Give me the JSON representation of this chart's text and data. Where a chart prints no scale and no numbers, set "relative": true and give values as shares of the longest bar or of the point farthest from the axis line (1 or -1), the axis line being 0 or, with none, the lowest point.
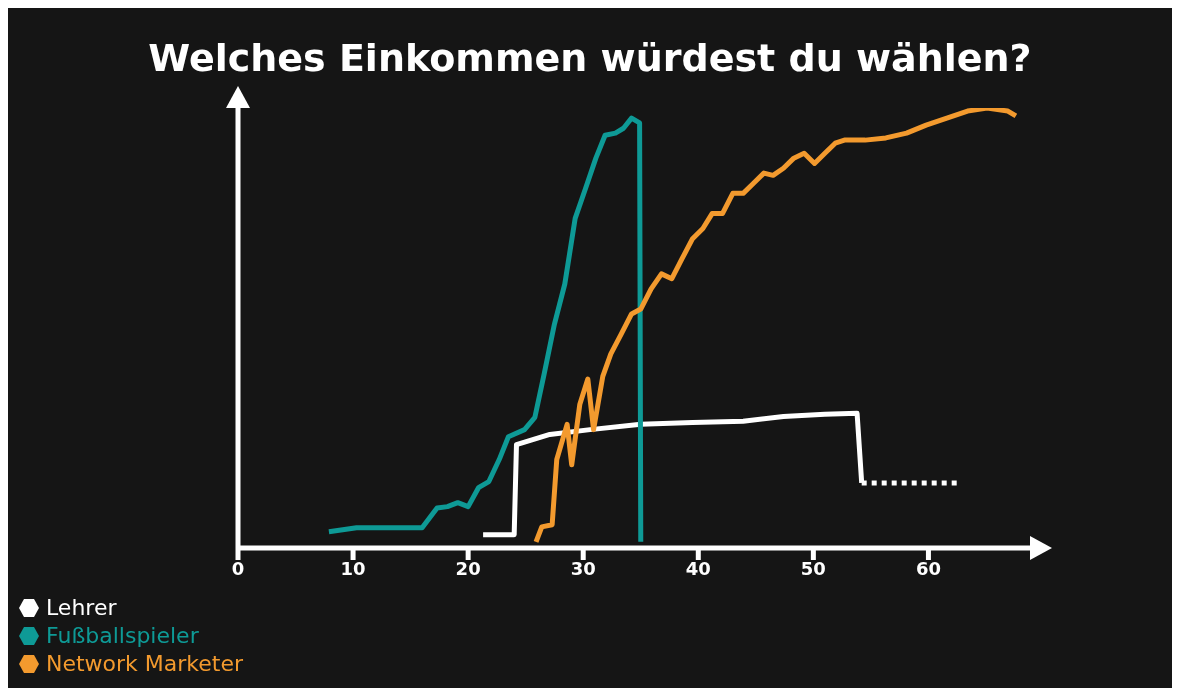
{
  "chart_data": {
    "type": "line",
    "title": "Welches Einkommen würdest du wählen?",
    "relative": true,
    "legend": "bottom left",
    "xlim": [
      0,
      69
    ],
    "xticks": [
      0,
      10,
      20,
      30,
      40,
      50,
      60
    ],
    "series": [
      {
        "name": "Lehrer",
        "color": "#ffffff",
        "x": [
          21.3,
          24.0,
          24.2,
          27.1,
          30.6,
          35.0,
          39.5,
          43.9,
          47.4,
          51.0,
          53.8,
          54.2
        ],
        "values": [
          0.03,
          0.03,
          0.235,
          0.258,
          0.269,
          0.281,
          0.285,
          0.288,
          0.299,
          0.304,
          0.306,
          0.148
        ]
      },
      {
        "color": "#ffffff",
        "line_style": "dotted",
        "x": [
          54.2,
          62.5
        ],
        "values": [
          0.148,
          0.148
        ]
      },
      {
        "name": "Fußballspieler",
        "color": "#0e9a96",
        "x": [
          7.9,
          10.3,
          16.0,
          17.3,
          18.2,
          19.1,
          20.0,
          20.9,
          21.8,
          22.7,
          23.5,
          24.9,
          25.8,
          26.6,
          27.5,
          28.4,
          29.3,
          30.2,
          31.1,
          31.9,
          32.8,
          33.5,
          34.2,
          34.9,
          35.0
        ],
        "values": [
          0.037,
          0.046,
          0.046,
          0.091,
          0.094,
          0.103,
          0.094,
          0.137,
          0.151,
          0.201,
          0.253,
          0.269,
          0.297,
          0.395,
          0.509,
          0.6,
          0.749,
          0.817,
          0.886,
          0.938,
          0.943,
          0.954,
          0.977,
          0.966,
          0.014
        ]
      },
      {
        "name": "Network Marketer",
        "color": "#f39a2e",
        "x": [
          25.9,
          26.4,
          27.3,
          27.7,
          28.6,
          29.0,
          29.7,
          30.4,
          30.9,
          31.7,
          32.4,
          33.3,
          34.2,
          35.0,
          35.9,
          36.8,
          37.7,
          38.6,
          39.5,
          40.4,
          41.2,
          42.1,
          43.0,
          43.9,
          44.8,
          45.7,
          46.5,
          47.4,
          48.3,
          49.2,
          50.1,
          51.0,
          51.9,
          52.7,
          54.5,
          56.3,
          58.1,
          59.8,
          61.6,
          63.4,
          65.1,
          66.9,
          67.6
        ],
        "values": [
          0.014,
          0.048,
          0.053,
          0.201,
          0.281,
          0.189,
          0.326,
          0.384,
          0.269,
          0.39,
          0.441,
          0.486,
          0.532,
          0.543,
          0.589,
          0.623,
          0.612,
          0.658,
          0.703,
          0.726,
          0.76,
          0.76,
          0.806,
          0.806,
          0.829,
          0.852,
          0.847,
          0.863,
          0.886,
          0.897,
          0.874,
          0.897,
          0.92,
          0.927,
          0.927,
          0.932,
          0.943,
          0.961,
          0.977,
          0.993,
          1.0,
          0.993,
          0.982
        ]
      }
    ]
  }
}
